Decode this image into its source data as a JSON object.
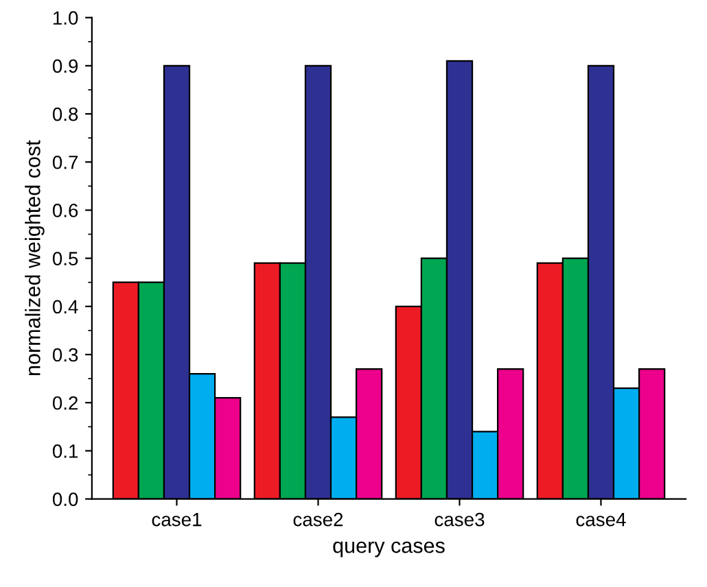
{
  "chart_data": {
    "type": "bar",
    "xlabel": "query cases",
    "ylabel": "normalized weighted cost",
    "categories": [
      "case1",
      "case2",
      "case3",
      "case4"
    ],
    "series": [
      {
        "color": "#ed1c24",
        "values": [
          0.45,
          0.49,
          0.4,
          0.49
        ]
      },
      {
        "color": "#00a651",
        "values": [
          0.45,
          0.49,
          0.5,
          0.5
        ]
      },
      {
        "color": "#2e3192",
        "values": [
          0.9,
          0.9,
          0.91,
          0.9
        ]
      },
      {
        "color": "#00aeef",
        "values": [
          0.26,
          0.17,
          0.14,
          0.23
        ]
      },
      {
        "color": "#ec008c",
        "values": [
          0.21,
          0.27,
          0.27,
          0.27
        ]
      }
    ],
    "ylim": [
      0,
      1.0
    ],
    "yticks": [
      {
        "value": 0,
        "label": "0.0"
      },
      0.1,
      0.2,
      0.3,
      0.4,
      0.5,
      0.6,
      0.7,
      0.8,
      0.9,
      {
        "value": 1,
        "label": "1.0"
      }
    ],
    "grid": false,
    "legend": false
  }
}
